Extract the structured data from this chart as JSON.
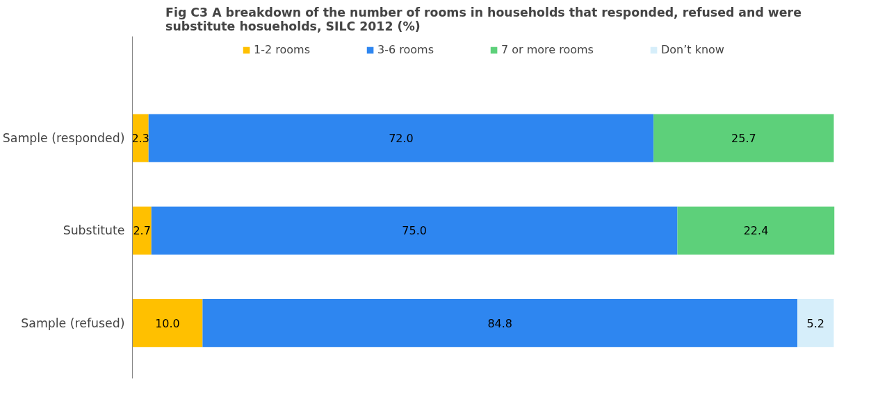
{
  "chart_data": {
    "type": "bar",
    "orientation": "horizontal",
    "stacked": true,
    "legend": "top",
    "grid": false,
    "title": "Fig C3 A breakdown of the number of rooms in households that responded, refused and were substitute hosueholds, SILC 2012 (%)",
    "categories": [
      "Sample (responded)",
      "Substitute",
      "Sample (refused)"
    ],
    "series": [
      {
        "name": "1-2 rooms",
        "color": "#ffc000",
        "values": [
          2.3,
          2.7,
          10.0
        ],
        "value_labels": [
          "2.3",
          "2.7",
          "10.0"
        ]
      },
      {
        "name": "3-6 rooms",
        "color": "#2e86f0",
        "values": [
          72.0,
          75.0,
          84.8
        ],
        "value_labels": [
          "72.0",
          "75.0",
          "84.8"
        ]
      },
      {
        "name": "7 or more rooms",
        "color": "#5dd07a",
        "values": [
          25.7,
          22.4,
          null
        ],
        "value_labels": [
          "25.7",
          "22.4",
          null
        ]
      },
      {
        "name": "Don’t know",
        "color": "#d6eefa",
        "values": [
          null,
          null,
          5.2
        ],
        "value_labels": [
          null,
          null,
          "5.2"
        ]
      }
    ]
  }
}
